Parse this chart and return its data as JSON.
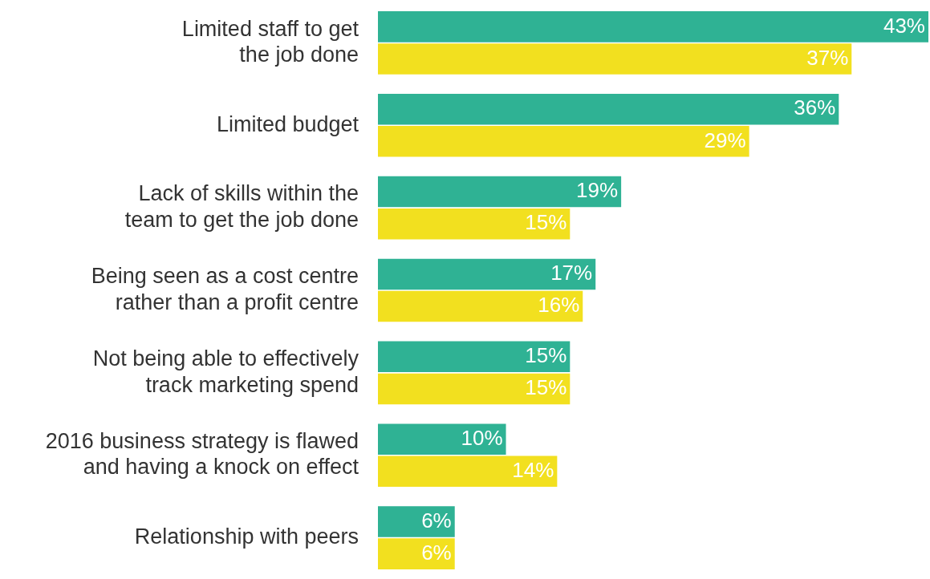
{
  "chart_data": {
    "type": "bar",
    "orientation": "horizontal",
    "categories": [
      "Limited staff to get\nthe job done",
      "Limited budget",
      "Lack of skills within the\nteam to get the job done",
      "Being seen as a cost centre\nrather than a profit centre",
      "Not being able to effectively\ntrack marketing spend",
      "2016 business strategy is flawed\nand having a knock on effect",
      "Relationship with peers"
    ],
    "series": [
      {
        "color": "#2fb294",
        "values": [
          43,
          36,
          19,
          17,
          15,
          10,
          6
        ],
        "value_labels": [
          "43%",
          "36%",
          "19%",
          "17%",
          "15%",
          "10%",
          "6%"
        ]
      },
      {
        "color": "#f2e01f",
        "values": [
          37,
          29,
          15,
          16,
          15,
          14,
          6
        ],
        "value_labels": [
          "37%",
          "29%",
          "15%",
          "16%",
          "15%",
          "14%",
          "6%"
        ]
      }
    ],
    "tick_labels": "y"
  }
}
